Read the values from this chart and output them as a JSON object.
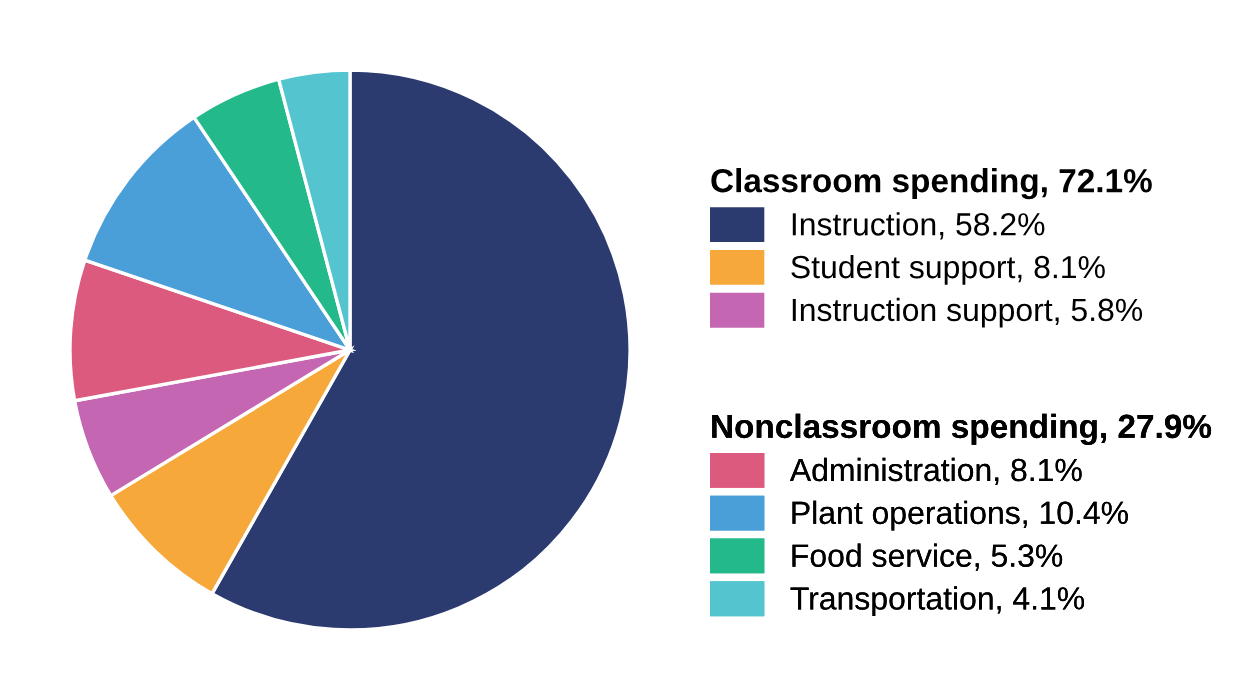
{
  "chart_data": {
    "type": "pie",
    "legend": "right",
    "categories": [
      "Instruction, 58.2%",
      "Student support, 8.1%",
      "Instruction support, 5.8%",
      "Administration, 8.1%",
      "Plant operations, 10.4%",
      "Food service, 5.3%",
      "Transportation, 4.1%"
    ],
    "values": [
      58.2,
      8.1,
      5.8,
      8.1,
      10.4,
      5.3,
      4.1
    ],
    "colors": [
      "#2b3b70",
      "#f6a83a",
      "#c466b1",
      "#dd5a7f",
      "#4a9fd9",
      "#23b98b",
      "#54c5cf"
    ],
    "annotations": [
      "Classroom spending, 72.1%",
      "Nonclassroom spending, 27.9%"
    ]
  }
}
